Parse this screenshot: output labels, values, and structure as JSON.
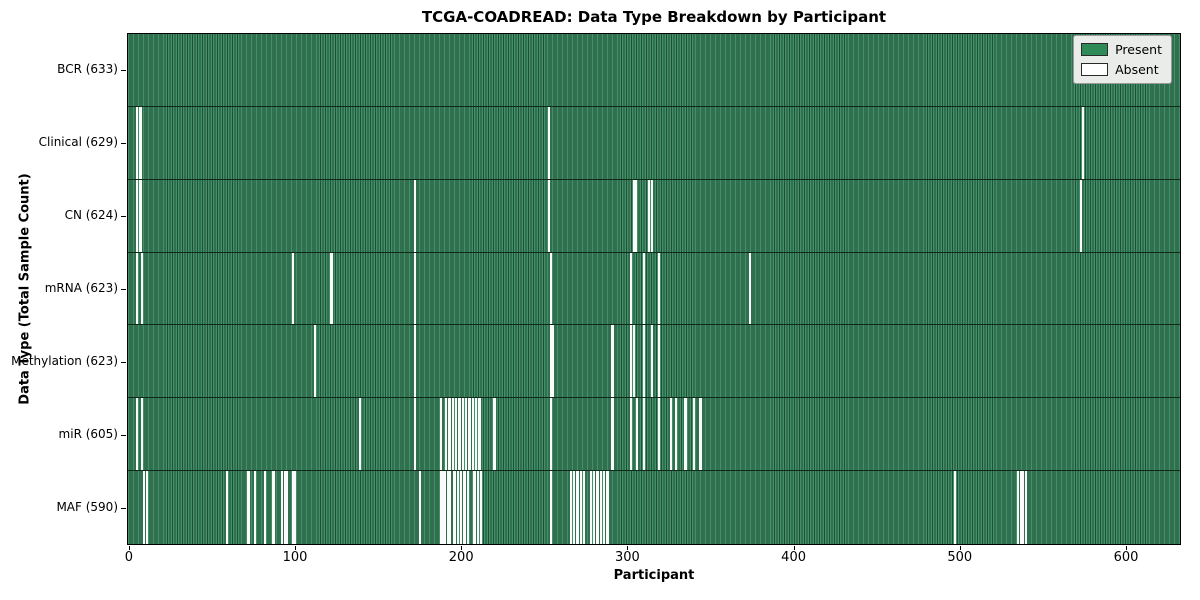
{
  "colors": {
    "present": "#2e8b57",
    "present_edge": "#1c5134",
    "absent": "#ffffff",
    "legend_bg": "#e9ece9",
    "axis": "#000000"
  },
  "chart_data": {
    "type": "heatmap",
    "title": "TCGA-COADREAD: Data Type Breakdown by Participant",
    "xlabel": "Participant",
    "ylabel": "Data Type (Total Sample Count)",
    "legend": {
      "present": "Present",
      "absent": "Absent"
    },
    "legend_position": "upper right",
    "grid": false,
    "n_participants": 633,
    "x_ticks": [
      0,
      100,
      200,
      300,
      400,
      500,
      600
    ],
    "rows": [
      {
        "label": "BCR (633)",
        "data_type": "BCR",
        "present_count": 633,
        "absent_participants": []
      },
      {
        "label": "Clinical (629)",
        "data_type": "Clinical",
        "present_count": 629,
        "absent_participants": [
          5,
          7,
          253,
          574
        ]
      },
      {
        "label": "CN (624)",
        "data_type": "CN",
        "present_count": 624,
        "absent_participants": [
          5,
          7,
          172,
          253,
          304,
          305,
          313,
          315,
          573
        ]
      },
      {
        "label": "mRNA (623)",
        "data_type": "mRNA",
        "present_count": 623,
        "absent_participants": [
          5,
          8,
          99,
          122,
          172,
          254,
          302,
          310,
          319,
          374
        ]
      },
      {
        "label": "Methylation (623)",
        "data_type": "Methylation",
        "present_count": 623,
        "absent_participants": [
          112,
          172,
          254,
          255,
          291,
          302,
          304,
          310,
          315,
          319
        ]
      },
      {
        "label": "miR (605)",
        "data_type": "miR",
        "present_count": 605,
        "absent_participants": [
          5,
          8,
          139,
          172,
          188,
          191,
          193,
          195,
          197,
          199,
          201,
          203,
          205,
          207,
          209,
          211,
          220,
          254,
          291,
          302,
          306,
          310,
          319,
          326,
          329,
          335,
          340,
          344
        ]
      },
      {
        "label": "MAF (590)",
        "data_type": "MAF",
        "present_count": 590,
        "absent_participants": [
          9,
          11,
          59,
          72,
          76,
          82,
          87,
          92,
          94,
          95,
          99,
          100,
          175,
          188,
          189,
          190,
          192,
          193,
          196,
          198,
          200,
          202,
          204,
          208,
          210,
          212,
          254,
          266,
          268,
          270,
          272,
          274,
          278,
          280,
          282,
          284,
          286,
          288,
          497,
          535,
          537,
          538,
          540
        ]
      }
    ]
  }
}
